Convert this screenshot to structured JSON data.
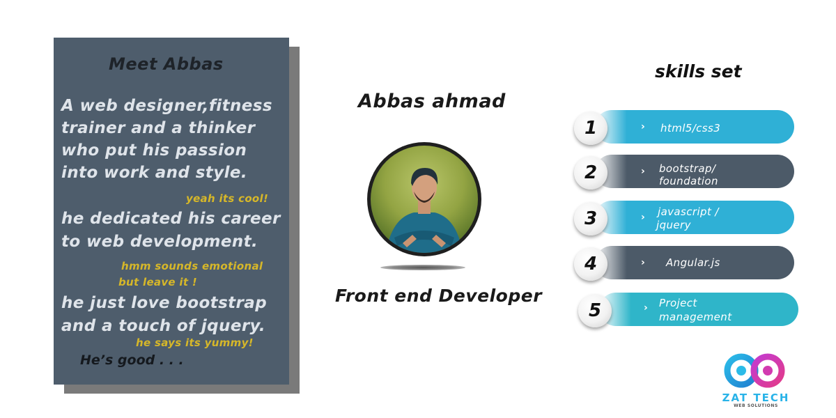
{
  "intro": {
    "title": "Meet Abbas",
    "paragraph1": [
      "A web designer,fitness",
      "trainer and a thinker",
      "who put his passion",
      "into work and style."
    ],
    "note1": "yeah its cool!",
    "paragraph2": [
      "he dedicated his career",
      "to web development."
    ],
    "note2": [
      "hmm sounds emotional",
      "but leave it !"
    ],
    "paragraph3": [
      "he just love bootstrap",
      "and a touch of jquery."
    ],
    "note3": "he says its yummy!",
    "closing": "He’s good  . . ."
  },
  "profile": {
    "name": "Abbas ahmad",
    "role": "Front end Developer"
  },
  "skills": {
    "title": "skills set",
    "items": [
      {
        "number": "1",
        "label": [
          "html5/css3"
        ],
        "color": "#2fb0d6"
      },
      {
        "number": "2",
        "label": [
          "bootstrap/",
          "foundation"
        ],
        "color": "#4c5a68"
      },
      {
        "number": "3",
        "label": [
          "javascript /",
          "jquery"
        ],
        "color": "#2fb0d6"
      },
      {
        "number": "4",
        "label": [
          "Angular.js"
        ],
        "color": "#4c5a68"
      },
      {
        "number": "5",
        "label": [
          "Project",
          "management"
        ],
        "color": "#2fb5c9"
      }
    ]
  },
  "logo": {
    "name": "ZAT TECH",
    "tagline": "WEB SOLUTIONS"
  },
  "colors": {
    "card": "#4e5d6c",
    "accent_text": "#d6b729",
    "skill_blue": "#2fb0d6",
    "skill_slate": "#4c5a68"
  }
}
